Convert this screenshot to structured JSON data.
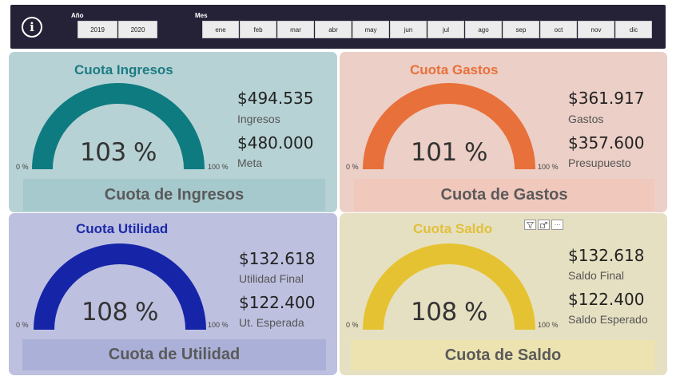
{
  "filters": {
    "year_label": "Año",
    "years": [
      "2019",
      "2020"
    ],
    "month_label": "Mes",
    "months": [
      "ene",
      "feb",
      "mar",
      "abr",
      "may",
      "jun",
      "jul",
      "ago",
      "sep",
      "oct",
      "nov",
      "dic"
    ]
  },
  "gauge_scale": {
    "min": "0 %",
    "max": "100 %"
  },
  "cards": {
    "ingresos": {
      "title": "Cuota Ingresos",
      "percent": "103 %",
      "fill_fraction": 1.0,
      "value1": "$494.535",
      "label1": "Ingresos",
      "value2": "$480.000",
      "label2": "Meta",
      "footer": "Cuota de Ingresos",
      "colors": {
        "bg": "#b7d2d5",
        "gauge": "#0e7b80",
        "title": "#1a7c82",
        "footer_bg": "#a6c9cd"
      }
    },
    "gastos": {
      "title": "Cuota Gastos",
      "percent": "101 %",
      "fill_fraction": 1.0,
      "value1": "$361.917",
      "label1": "Gastos",
      "value2": "$357.600",
      "label2": "Presupuesto",
      "footer": "Cuota de Gastos",
      "colors": {
        "bg": "#eccfc6",
        "gauge": "#e8703a",
        "title": "#e8703a",
        "footer_bg": "#f0c8bc"
      }
    },
    "utilidad": {
      "title": "Cuota Utilidad",
      "percent": "108 %",
      "fill_fraction": 1.0,
      "value1": "$132.618",
      "label1": "Utilidad Final",
      "value2": "$122.400",
      "label2": "Ut. Esperada",
      "footer": "Cuota de Utilidad",
      "colors": {
        "bg": "#bec0e0",
        "gauge": "#1625a8",
        "title": "#1b2aa8",
        "footer_bg": "#aab0d8"
      }
    },
    "saldo": {
      "title": "Cuota Saldo",
      "percent": "108 %",
      "fill_fraction": 1.0,
      "value1": "$132.618",
      "label1": "Saldo Final",
      "value2": "$122.400",
      "label2": "Saldo Esperado",
      "footer": "Cuota de Saldo",
      "colors": {
        "bg": "#e6e0c2",
        "gauge": "#e5c232",
        "title": "#e0c03a",
        "footer_bg": "#ece3b0"
      }
    }
  },
  "visual_header_icons": [
    "filter-icon",
    "focus-mode-icon",
    "more-options-icon"
  ]
}
